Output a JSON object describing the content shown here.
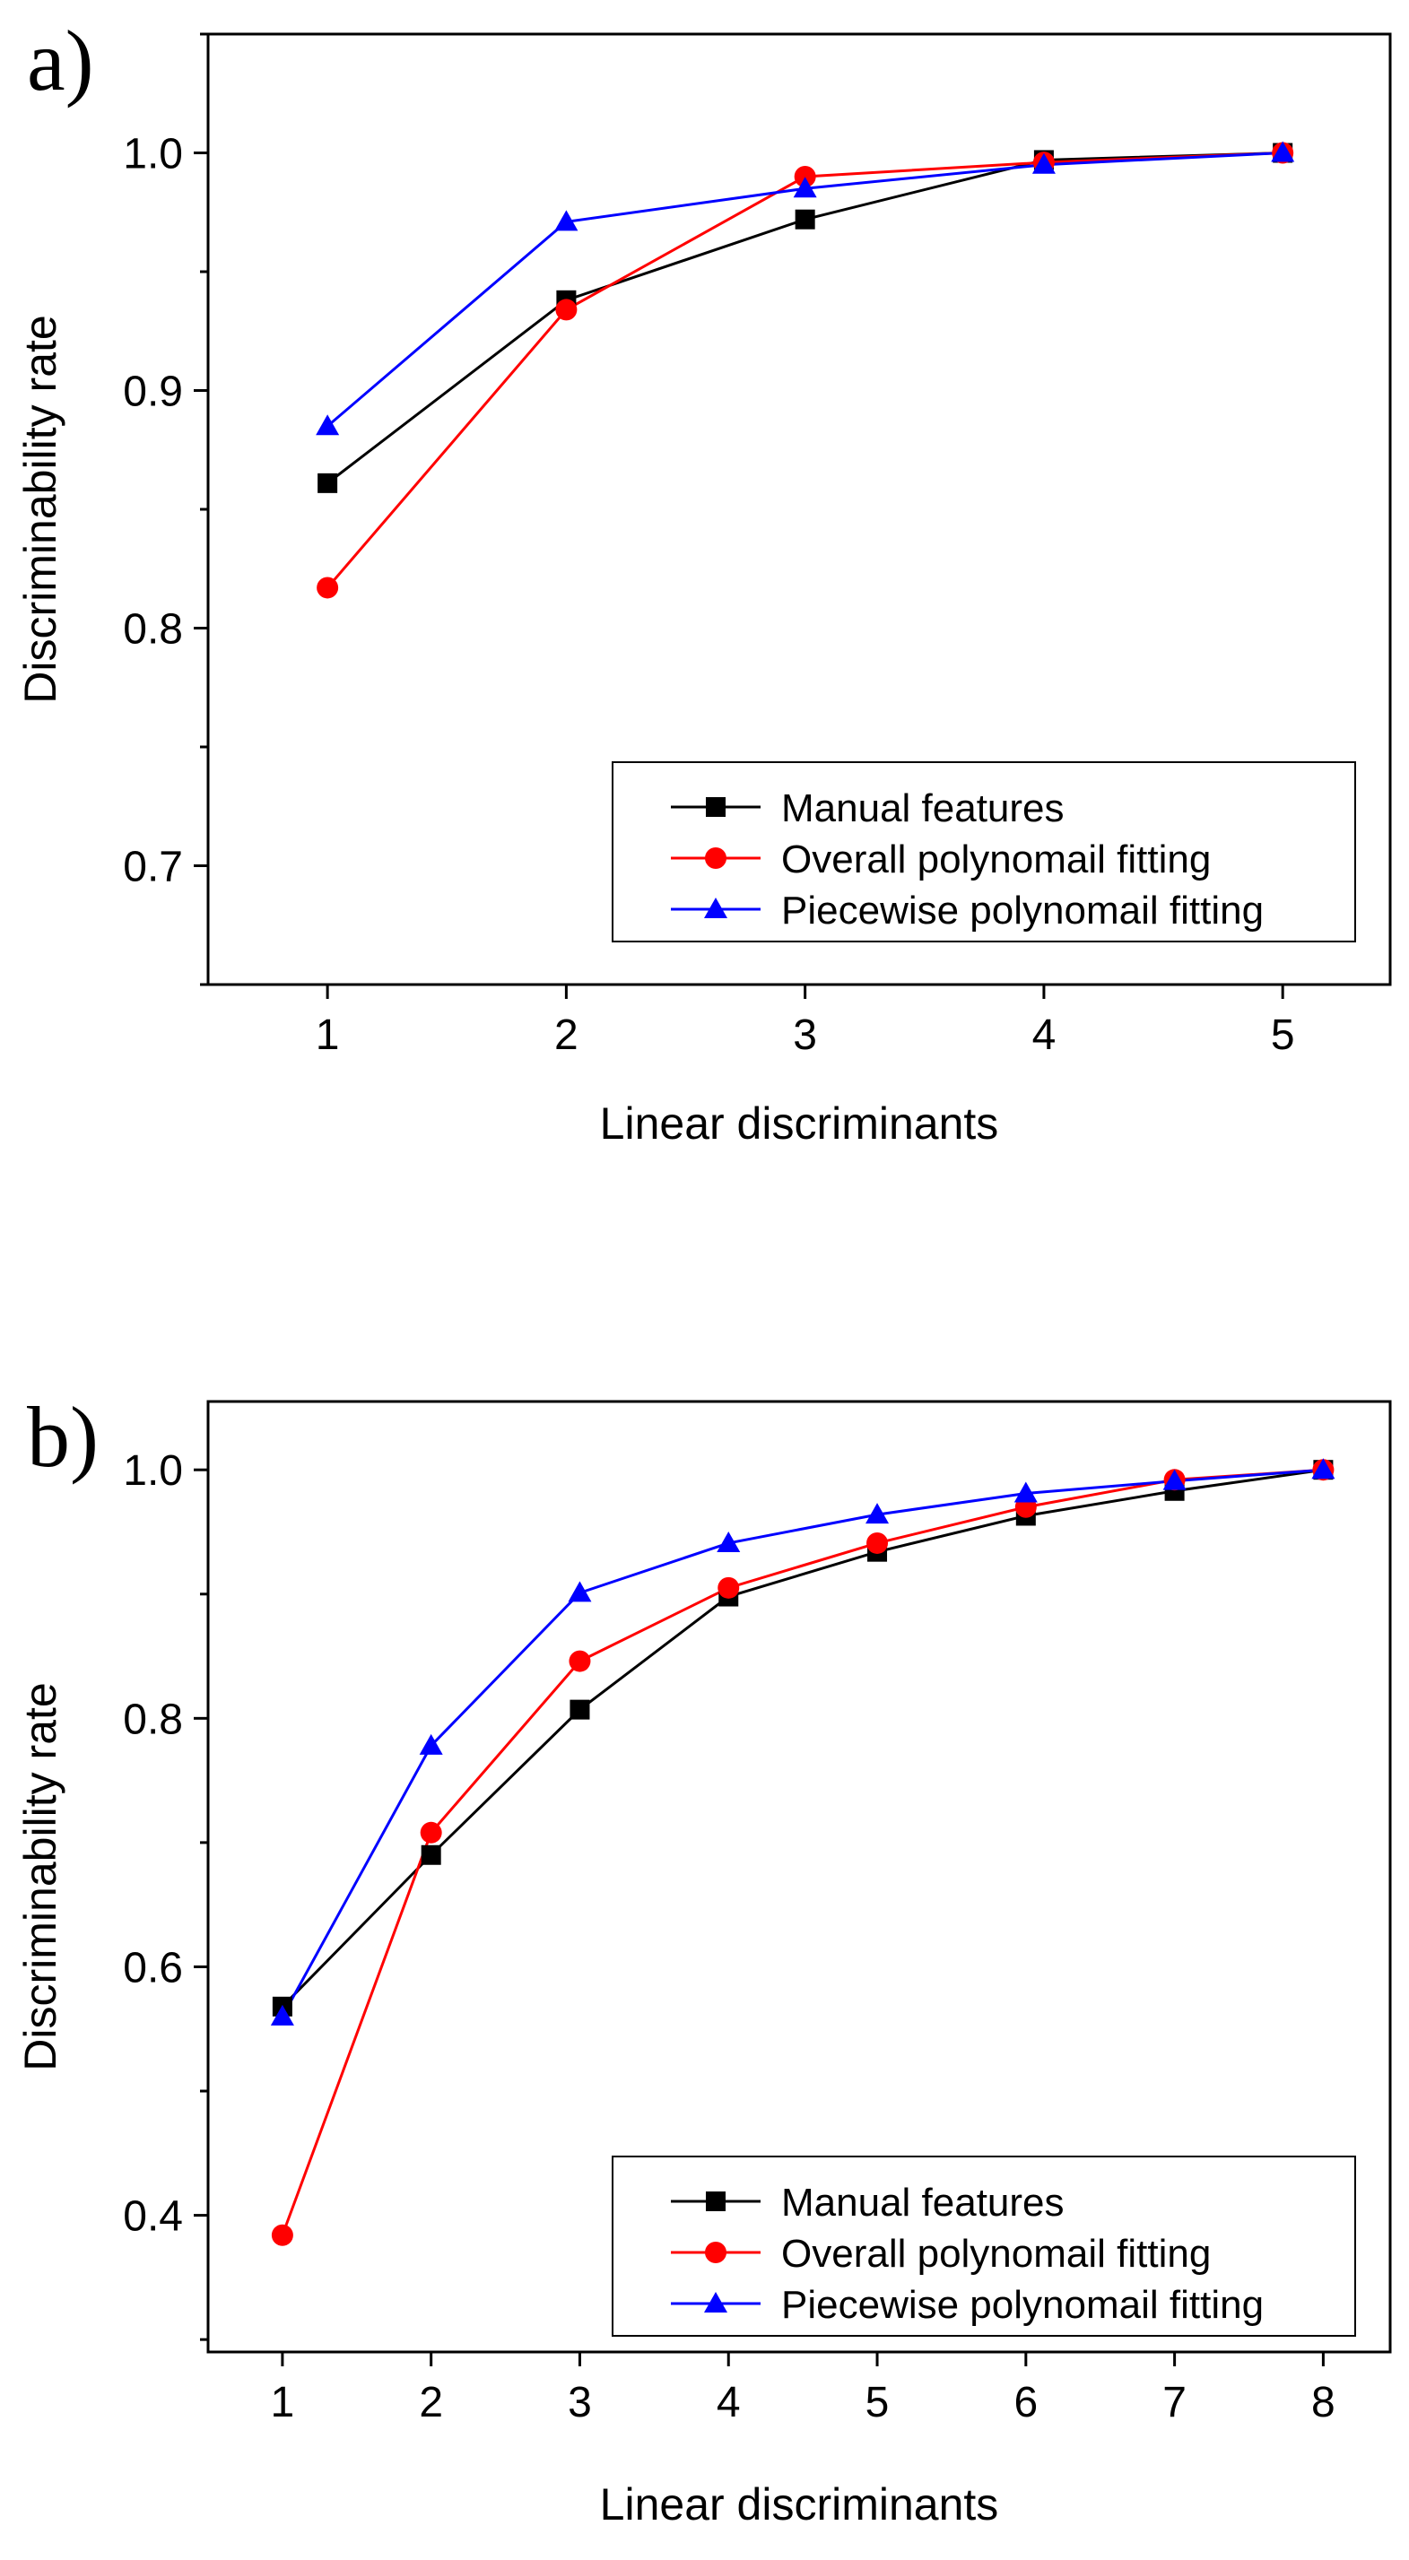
{
  "chart_data": [
    {
      "type": "line",
      "panel_label": "a)",
      "title": "",
      "xlabel": "Linear discriminants",
      "ylabel": "Discriminability rate",
      "x": [
        1,
        2,
        3,
        4,
        5
      ],
      "x_ticks": [
        1,
        2,
        3,
        4,
        5
      ],
      "xlim": [
        0.5,
        5.45
      ],
      "ylim": [
        0.65,
        1.05
      ],
      "y_ticks": [
        "0.7",
        "0.8",
        "0.9",
        "1.0"
      ],
      "y_tick_values": [
        0.7,
        0.8,
        0.9,
        1.0
      ],
      "legend_position": "lower-right",
      "series": [
        {
          "name": "Manual features",
          "color": "#000000",
          "marker": "square",
          "values": [
            0.861,
            0.938,
            0.972,
            0.997,
            1.0
          ]
        },
        {
          "name": "Overall polynomail fitting",
          "color": "#ff0000",
          "marker": "circle",
          "values": [
            0.817,
            0.934,
            0.99,
            0.996,
            1.0
          ]
        },
        {
          "name": "Piecewise polynomail fitting",
          "color": "#0000ff",
          "marker": "triangle",
          "values": [
            0.885,
            0.971,
            0.985,
            0.995,
            1.0
          ]
        }
      ]
    },
    {
      "type": "line",
      "panel_label": "b)",
      "title": "",
      "xlabel": "Linear discriminants",
      "ylabel": "Discriminability rate",
      "x": [
        1,
        2,
        3,
        4,
        5,
        6,
        7,
        8
      ],
      "x_ticks": [
        1,
        2,
        3,
        4,
        5,
        6,
        7,
        8
      ],
      "xlim": [
        0.5,
        8.45
      ],
      "ylim": [
        0.29,
        1.055
      ],
      "y_ticks": [
        "0.4",
        "0.6",
        "0.8",
        "1.0"
      ],
      "y_tick_values": [
        0.4,
        0.6,
        0.8,
        1.0
      ],
      "legend_position": "lower-right",
      "series": [
        {
          "name": "Manual features",
          "color": "#000000",
          "marker": "square",
          "values": [
            0.568,
            0.69,
            0.807,
            0.898,
            0.934,
            0.963,
            0.983,
            1.0
          ]
        },
        {
          "name": "Overall polynomail fitting",
          "color": "#ff0000",
          "marker": "circle",
          "values": [
            0.384,
            0.708,
            0.846,
            0.905,
            0.941,
            0.97,
            0.992,
            1.0
          ]
        },
        {
          "name": "Piecewise polynomail fitting",
          "color": "#0000ff",
          "marker": "triangle",
          "values": [
            0.56,
            0.778,
            0.901,
            0.941,
            0.964,
            0.981,
            0.991,
            1.0
          ]
        }
      ]
    }
  ]
}
